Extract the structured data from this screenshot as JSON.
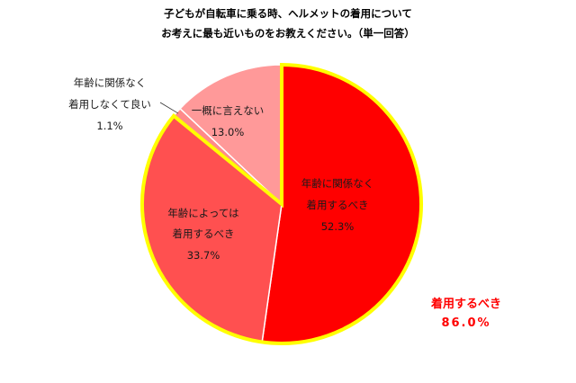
{
  "title_lines": [
    "子どもが自転車に乗る時、ヘルメットの着用について",
    "お考えに最も近いものをお教えください。（単一回答）"
  ],
  "colors": {
    "slice_1": "#ff0000",
    "slice_2": "#ff5050",
    "slice_3": "#ff8a8a",
    "slice_4": "#ff9999",
    "highlight": "#ffff00",
    "callout": "#ff0000"
  },
  "chart_data": {
    "type": "pie",
    "start": "12 o'clock",
    "direction": "clockwise",
    "slices": [
      {
        "label_lines": [
          "年齢に関係なく",
          "着用するべき"
        ],
        "value": 52.3,
        "value_label": "52.3%"
      },
      {
        "label_lines": [
          "年齢によっては",
          "着用するべき"
        ],
        "value": 33.7,
        "value_label": "33.7%"
      },
      {
        "label_lines": [
          "年齢に関係なく",
          "着用しなくて良い"
        ],
        "value": 1.1,
        "value_label": "1.1%"
      },
      {
        "label_lines": [
          "一概に言えない"
        ],
        "value": 13.0,
        "value_label": "13.0%"
      }
    ],
    "highlight_group": {
      "slices": [
        0,
        1
      ],
      "label": "着用するべき",
      "value": 86.0,
      "value_label": "86.0%"
    }
  }
}
